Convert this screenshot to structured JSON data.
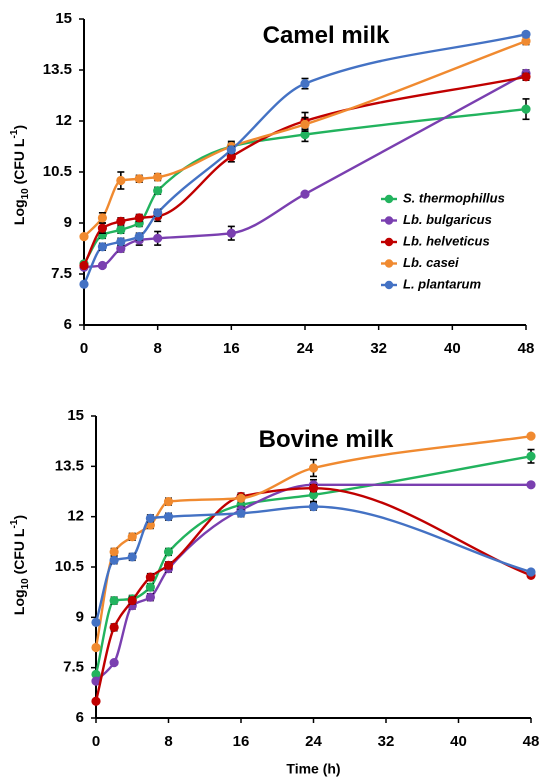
{
  "figure": {
    "colors": {
      "S. thermophillus": "#22b35e",
      "Lb. bulgaricus": "#7a3fb0",
      "Lb. helveticus": "#c00000",
      "Lb. casei": "#f08a30",
      "L. plantarum": "#4472c4"
    }
  },
  "chart_data": [
    {
      "type": "line",
      "title": "Camel milk",
      "xlabel": "",
      "ylabel_main": "Log",
      "ylabel_sub": "10",
      "ylabel_rest": " (CFU L",
      "ylabel_sup": "-1",
      "ylabel_end": ")",
      "ylim": [
        6,
        15
      ],
      "xlim": [
        0,
        48
      ],
      "yticks": [
        "6",
        "7.5",
        "9",
        "10.5",
        "12",
        "13.5",
        "15"
      ],
      "xticks": [
        "0",
        "8",
        "16",
        "24",
        "32",
        "40",
        "48"
      ],
      "legend_position": "middle-right",
      "grid": false,
      "series": [
        {
          "name": "S. thermophillus",
          "x": [
            0,
            2,
            4,
            6,
            8,
            16,
            24,
            48
          ],
          "y": [
            7.8,
            8.65,
            8.8,
            9.0,
            9.95,
            11.25,
            11.6,
            12.35
          ],
          "err": [
            0.05,
            0.1,
            0.1,
            0.1,
            0.1,
            0.15,
            0.2,
            0.3
          ]
        },
        {
          "name": "Lb. bulgaricus",
          "x": [
            0,
            2,
            4,
            6,
            8,
            16,
            24,
            48
          ],
          "y": [
            7.7,
            7.75,
            8.25,
            8.5,
            8.55,
            8.7,
            9.85,
            13.4
          ],
          "err": [
            0.05,
            0.05,
            0.1,
            0.15,
            0.2,
            0.2,
            0.05,
            0.1
          ]
        },
        {
          "name": "Lb. helveticus",
          "x": [
            0,
            2,
            4,
            6,
            8,
            16,
            24,
            48
          ],
          "y": [
            7.75,
            8.85,
            9.05,
            9.15,
            9.2,
            10.95,
            12.0,
            13.3
          ],
          "err": [
            0.05,
            0.15,
            0.1,
            0.1,
            0.15,
            0.15,
            0.25,
            0.1
          ]
        },
        {
          "name": "Lb. casei",
          "x": [
            0,
            2,
            4,
            6,
            8,
            16,
            24,
            48
          ],
          "y": [
            8.6,
            9.15,
            10.25,
            10.3,
            10.35,
            11.25,
            11.9,
            14.35
          ],
          "err": [
            0.05,
            0.15,
            0.25,
            0.1,
            0.1,
            0.1,
            0.2,
            0.1
          ]
        },
        {
          "name": "L. plantarum",
          "x": [
            0,
            2,
            4,
            6,
            8,
            16,
            24,
            48
          ],
          "y": [
            7.2,
            8.3,
            8.45,
            8.6,
            9.3,
            11.15,
            13.1,
            14.55
          ],
          "err": [
            0.05,
            0.1,
            0.1,
            0.1,
            0.1,
            0.1,
            0.15,
            0.05
          ]
        }
      ]
    },
    {
      "type": "line",
      "title": "Bovine milk",
      "xlabel": "Time (h)",
      "ylabel_main": "Log",
      "ylabel_sub": "10",
      "ylabel_rest": " (CFU L",
      "ylabel_sup": "-1",
      "ylabel_end": ")",
      "ylim": [
        6,
        15
      ],
      "xlim": [
        0,
        48
      ],
      "yticks": [
        "6",
        "7.5",
        "9",
        "10.5",
        "12",
        "13.5",
        "15"
      ],
      "xticks": [
        "0",
        "8",
        "16",
        "24",
        "32",
        "40",
        "48"
      ],
      "grid": false,
      "series": [
        {
          "name": "S. thermophillus",
          "x": [
            0,
            2,
            4,
            6,
            8,
            16,
            24,
            48
          ],
          "y": [
            7.3,
            9.5,
            9.55,
            9.9,
            10.95,
            12.35,
            12.65,
            13.8
          ],
          "err": [
            0.05,
            0.1,
            0.1,
            0.1,
            0.1,
            0.15,
            0.2,
            0.2
          ]
        },
        {
          "name": "Lb. bulgaricus",
          "x": [
            0,
            2,
            4,
            6,
            8,
            16,
            24,
            48
          ],
          "y": [
            7.1,
            7.65,
            9.35,
            9.6,
            10.45,
            12.2,
            12.95,
            12.95
          ],
          "err": [
            0.05,
            0.05,
            0.1,
            0.1,
            0.1,
            0.1,
            0.15,
            0.05
          ]
        },
        {
          "name": "Lb. helveticus",
          "x": [
            0,
            2,
            4,
            6,
            8,
            16,
            24,
            48
          ],
          "y": [
            6.5,
            8.7,
            9.5,
            10.2,
            10.55,
            12.6,
            12.85,
            10.25
          ],
          "err": [
            0.05,
            0.1,
            0.1,
            0.1,
            0.1,
            0.1,
            0.1,
            0.05
          ]
        },
        {
          "name": "Lb. casei",
          "x": [
            0,
            2,
            4,
            6,
            8,
            16,
            24,
            48
          ],
          "y": [
            8.1,
            10.95,
            11.4,
            11.75,
            12.45,
            12.55,
            13.45,
            14.4
          ],
          "err": [
            0.05,
            0.1,
            0.1,
            0.1,
            0.1,
            0.1,
            0.25,
            0.05
          ]
        },
        {
          "name": "L. plantarum",
          "x": [
            0,
            2,
            4,
            6,
            8,
            16,
            24,
            48
          ],
          "y": [
            8.85,
            10.7,
            10.8,
            11.95,
            12.0,
            12.1,
            12.3,
            10.35
          ],
          "err": [
            0.05,
            0.1,
            0.1,
            0.1,
            0.1,
            0.1,
            0.1,
            0.05
          ]
        }
      ]
    }
  ]
}
